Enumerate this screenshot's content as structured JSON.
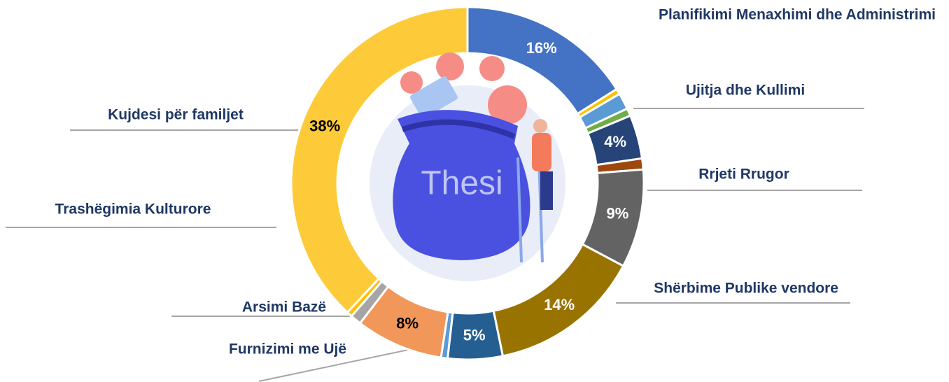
{
  "chart_data": {
    "type": "donut",
    "center_label": "Thesi",
    "categories": [
      "Planifikimi Menaxhimi dhe Administrimi",
      null,
      "Ujitja dhe Kullimi",
      null,
      null,
      "Rrjeti Rrugor",
      null,
      "Shërbime Publike vendore",
      "Furnizimi me Ujë",
      null,
      null,
      "Arsimi Bazë",
      "Trashëgimia Kulturore",
      "Kujdesi për familjet"
    ],
    "values": [
      16,
      0.5,
      1.5,
      0.7,
      4,
      1,
      9,
      14,
      5,
      0.6,
      8,
      1,
      0.5,
      38
    ],
    "value_labels": [
      "16%",
      null,
      null,
      null,
      "4%",
      null,
      "9%",
      "14%",
      "5%",
      null,
      "8%",
      null,
      null,
      "38%"
    ],
    "colors": [
      "#4472c4",
      "#ffc000",
      "#5b9bd5",
      "#70ad47",
      "#264478",
      "#9e480e",
      "#636363",
      "#997300",
      "#255e91",
      "#5b9bd5",
      "#f1975a",
      "#a5a5a5",
      "#ffc000",
      "#fdcb3a"
    ]
  }
}
